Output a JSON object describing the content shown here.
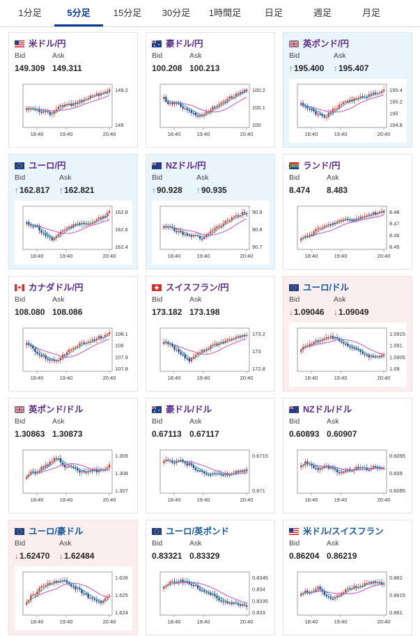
{
  "tabs": [
    "1分足",
    "5分足",
    "15分足",
    "30分足",
    "1時間足",
    "日足",
    "週足",
    "月足"
  ],
  "active_tab": 1,
  "colors": {
    "accent": "#0a3d91",
    "title_purple": "#5a2a8c",
    "title_blue": "#175a9b",
    "up_arrow": "#3d7fd1",
    "down_arrow": "#d23b3b",
    "up_bg": "#eaf4fb",
    "down_bg": "#fbeeee",
    "ma_line": "#c44cc4",
    "ma_line2": "#2aa9a0",
    "candle_up": "#e53935",
    "candle_down": "#1f3fa0"
  },
  "x_labels": [
    "18:40",
    "19:40",
    "20:40"
  ],
  "cards": [
    {
      "title": "米ドル/円",
      "flag": "us",
      "title_color": "purple",
      "bg": "none",
      "bid_label": "Bid",
      "ask_label": "Ask",
      "bid": "149.309",
      "ask": "149.311",
      "arrow": "",
      "y_ticks": [
        "149.2",
        "149"
      ],
      "trend": [
        0.55,
        0.62,
        0.6,
        0.7,
        0.66,
        0.72,
        0.75,
        0.58,
        0.52,
        0.48,
        0.5,
        0.45,
        0.4,
        0.36,
        0.3,
        0.26,
        0.22,
        0.18,
        0.12,
        0.08
      ]
    },
    {
      "title": "豪ドル/円",
      "flag": "au",
      "title_color": "purple",
      "bg": "none",
      "bid_label": "Bid",
      "ask_label": "Ask",
      "bid": "100.208",
      "ask": "100.213",
      "arrow": "",
      "y_ticks": [
        "100.2",
        "100.1",
        "100"
      ],
      "trend": [
        0.3,
        0.45,
        0.5,
        0.42,
        0.55,
        0.62,
        0.68,
        0.75,
        0.8,
        0.78,
        0.7,
        0.6,
        0.52,
        0.45,
        0.38,
        0.3,
        0.25,
        0.2,
        0.12,
        0.06
      ]
    },
    {
      "title": "英ポンド/円",
      "flag": "uk",
      "title_color": "purple",
      "bg": "up",
      "bid_label": "Bid",
      "ask_label": "Ask",
      "bid": "195.400",
      "ask": "195.407",
      "arrow": "up",
      "y_ticks": [
        "195.4",
        "195.2",
        "195",
        "194.8"
      ],
      "trend": [
        0.45,
        0.55,
        0.6,
        0.7,
        0.75,
        0.82,
        0.78,
        0.65,
        0.58,
        0.5,
        0.42,
        0.38,
        0.35,
        0.3,
        0.28,
        0.25,
        0.2,
        0.18,
        0.12,
        0.06
      ]
    },
    {
      "title": "ユーロ/円",
      "flag": "eu",
      "title_color": "purple",
      "bg": "up",
      "bid_label": "Bid",
      "ask_label": "Ask",
      "bid": "162.817",
      "ask": "162.821",
      "arrow": "up",
      "y_ticks": [
        "162.8",
        "162.6",
        "162.4"
      ],
      "trend": [
        0.35,
        0.5,
        0.45,
        0.6,
        0.7,
        0.78,
        0.85,
        0.72,
        0.62,
        0.55,
        0.5,
        0.45,
        0.42,
        0.38,
        0.4,
        0.35,
        0.3,
        0.25,
        0.18,
        0.08
      ]
    },
    {
      "title": "NZドル/円",
      "flag": "nz",
      "title_color": "purple",
      "bg": "up",
      "bid_label": "Bid",
      "ask_label": "Ask",
      "bid": "90.928",
      "ask": "90.935",
      "arrow": "up",
      "y_ticks": [
        "90.9",
        "90.8",
        "90.7"
      ],
      "trend": [
        0.45,
        0.5,
        0.55,
        0.6,
        0.65,
        0.7,
        0.72,
        0.75,
        0.78,
        0.8,
        0.7,
        0.6,
        0.52,
        0.45,
        0.38,
        0.3,
        0.25,
        0.18,
        0.12,
        0.1
      ]
    },
    {
      "title": "ランド/円",
      "flag": "za",
      "title_color": "purple",
      "bg": "none",
      "bid_label": "Bid",
      "ask_label": "Ask",
      "bid": "8.474",
      "ask": "8.483",
      "arrow": "",
      "y_ticks": [
        "8.48",
        "8.47",
        "8.46",
        "8.45"
      ],
      "trend": [
        0.85,
        0.75,
        0.7,
        0.62,
        0.55,
        0.5,
        0.45,
        0.4,
        0.36,
        0.32,
        0.3,
        0.28,
        0.32,
        0.26,
        0.22,
        0.18,
        0.14,
        0.12,
        0.1,
        0.08
      ]
    },
    {
      "title": "カナダドル/円",
      "flag": "ca",
      "title_color": "purple",
      "bg": "none",
      "bid_label": "Bid",
      "ask_label": "Ask",
      "bid": "108.080",
      "ask": "108.086",
      "arrow": "",
      "y_ticks": [
        "108.1",
        "108",
        "107.9",
        "107.8"
      ],
      "trend": [
        0.35,
        0.45,
        0.55,
        0.65,
        0.72,
        0.78,
        0.82,
        0.8,
        0.72,
        0.62,
        0.5,
        0.42,
        0.38,
        0.32,
        0.28,
        0.25,
        0.2,
        0.16,
        0.12,
        0.06
      ]
    },
    {
      "title": "スイスフラン/円",
      "flag": "ch",
      "title_color": "purple",
      "bg": "none",
      "bid_label": "Bid",
      "ask_label": "Ask",
      "bid": "173.182",
      "ask": "173.198",
      "arrow": "",
      "y_ticks": [
        "173.2",
        "173",
        "172.8"
      ],
      "trend": [
        0.3,
        0.35,
        0.45,
        0.55,
        0.62,
        0.75,
        0.82,
        0.7,
        0.6,
        0.55,
        0.5,
        0.42,
        0.38,
        0.35,
        0.3,
        0.25,
        0.22,
        0.18,
        0.12,
        0.08
      ]
    },
    {
      "title": "ユーロ/ドル",
      "flag": "eu",
      "title_color": "blue",
      "bg": "down",
      "bid_label": "Bid",
      "ask_label": "Ask",
      "bid": "1.09046",
      "ask": "1.09049",
      "arrow": "down",
      "y_ticks": [
        "1.0915",
        "1.091",
        "1.0905",
        "1.09"
      ],
      "trend": [
        0.5,
        0.42,
        0.35,
        0.3,
        0.25,
        0.2,
        0.15,
        0.18,
        0.22,
        0.3,
        0.38,
        0.45,
        0.5,
        0.55,
        0.62,
        0.7,
        0.72,
        0.75,
        0.72,
        0.65
      ]
    },
    {
      "title": "英ポンド/ドル",
      "flag": "uk",
      "title_color": "purple",
      "bg": "none",
      "bid_label": "Bid",
      "ask_label": "Ask",
      "bid": "1.30863",
      "ask": "1.30873",
      "arrow": "",
      "y_ticks": [
        "1.309",
        "1.308",
        "1.307"
      ],
      "trend": [
        0.7,
        0.55,
        0.52,
        0.45,
        0.38,
        0.3,
        0.22,
        0.12,
        0.28,
        0.4,
        0.35,
        0.42,
        0.52,
        0.55,
        0.48,
        0.45,
        0.5,
        0.48,
        0.42,
        0.35
      ]
    },
    {
      "title": "豪ドル/ドル",
      "flag": "au",
      "title_color": "purple",
      "bg": "none",
      "bid_label": "Bid",
      "ask_label": "Ask",
      "bid": "0.67113",
      "ask": "0.67117",
      "arrow": "",
      "y_ticks": [
        "0.6715",
        "0.671"
      ],
      "trend": [
        0.25,
        0.2,
        0.3,
        0.22,
        0.18,
        0.35,
        0.3,
        0.45,
        0.5,
        0.55,
        0.62,
        0.55,
        0.58,
        0.62,
        0.6,
        0.58,
        0.55,
        0.52,
        0.5,
        0.48
      ]
    },
    {
      "title": "NZドル/ドル",
      "flag": "nz",
      "title_color": "purple",
      "bg": "none",
      "bid_label": "Bid",
      "ask_label": "Ask",
      "bid": "0.60893",
      "ask": "0.60907",
      "arrow": "",
      "y_ticks": [
        "0.6095",
        "0.609",
        "0.6085"
      ],
      "trend": [
        0.35,
        0.25,
        0.3,
        0.4,
        0.48,
        0.42,
        0.38,
        0.45,
        0.5,
        0.55,
        0.52,
        0.48,
        0.45,
        0.42,
        0.4,
        0.45,
        0.42,
        0.38,
        0.4,
        0.42
      ]
    },
    {
      "title": "ユーロ/豪ドル",
      "flag": "eu",
      "title_color": "blue",
      "bg": "down",
      "bid_label": "Bid",
      "ask_label": "Ask",
      "bid": "1.62470",
      "ask": "1.62484",
      "arrow": "down",
      "y_ticks": [
        "1.626",
        "1.625",
        "1.624"
      ],
      "trend": [
        0.75,
        0.6,
        0.5,
        0.38,
        0.3,
        0.25,
        0.2,
        0.18,
        0.15,
        0.2,
        0.28,
        0.35,
        0.42,
        0.5,
        0.6,
        0.65,
        0.75,
        0.78,
        0.68,
        0.6
      ]
    },
    {
      "title": "ユーロ/英ポンド",
      "flag": "eu",
      "title_color": "blue",
      "bg": "none",
      "bid_label": "Bid",
      "ask_label": "Ask",
      "bid": "0.83321",
      "ask": "0.83329",
      "arrow": "",
      "y_ticks": [
        "0.8345",
        "0.834",
        "0.8335",
        "0.833"
      ],
      "trend": [
        0.3,
        0.25,
        0.2,
        0.18,
        0.15,
        0.2,
        0.25,
        0.3,
        0.38,
        0.45,
        0.5,
        0.55,
        0.62,
        0.7,
        0.75,
        0.78,
        0.8,
        0.82,
        0.84,
        0.86
      ]
    },
    {
      "title": "米ドル/スイスフラン",
      "flag": "us",
      "title_color": "blue",
      "bg": "none",
      "bid_label": "Bid",
      "ask_label": "Ask",
      "bid": "0.86204",
      "ask": "0.86219",
      "arrow": "",
      "y_ticks": [
        "0.862",
        "0.8615",
        "0.861"
      ],
      "trend": [
        0.55,
        0.45,
        0.5,
        0.4,
        0.35,
        0.5,
        0.62,
        0.7,
        0.6,
        0.52,
        0.45,
        0.4,
        0.35,
        0.32,
        0.3,
        0.25,
        0.22,
        0.2,
        0.22,
        0.25
      ]
    }
  ]
}
